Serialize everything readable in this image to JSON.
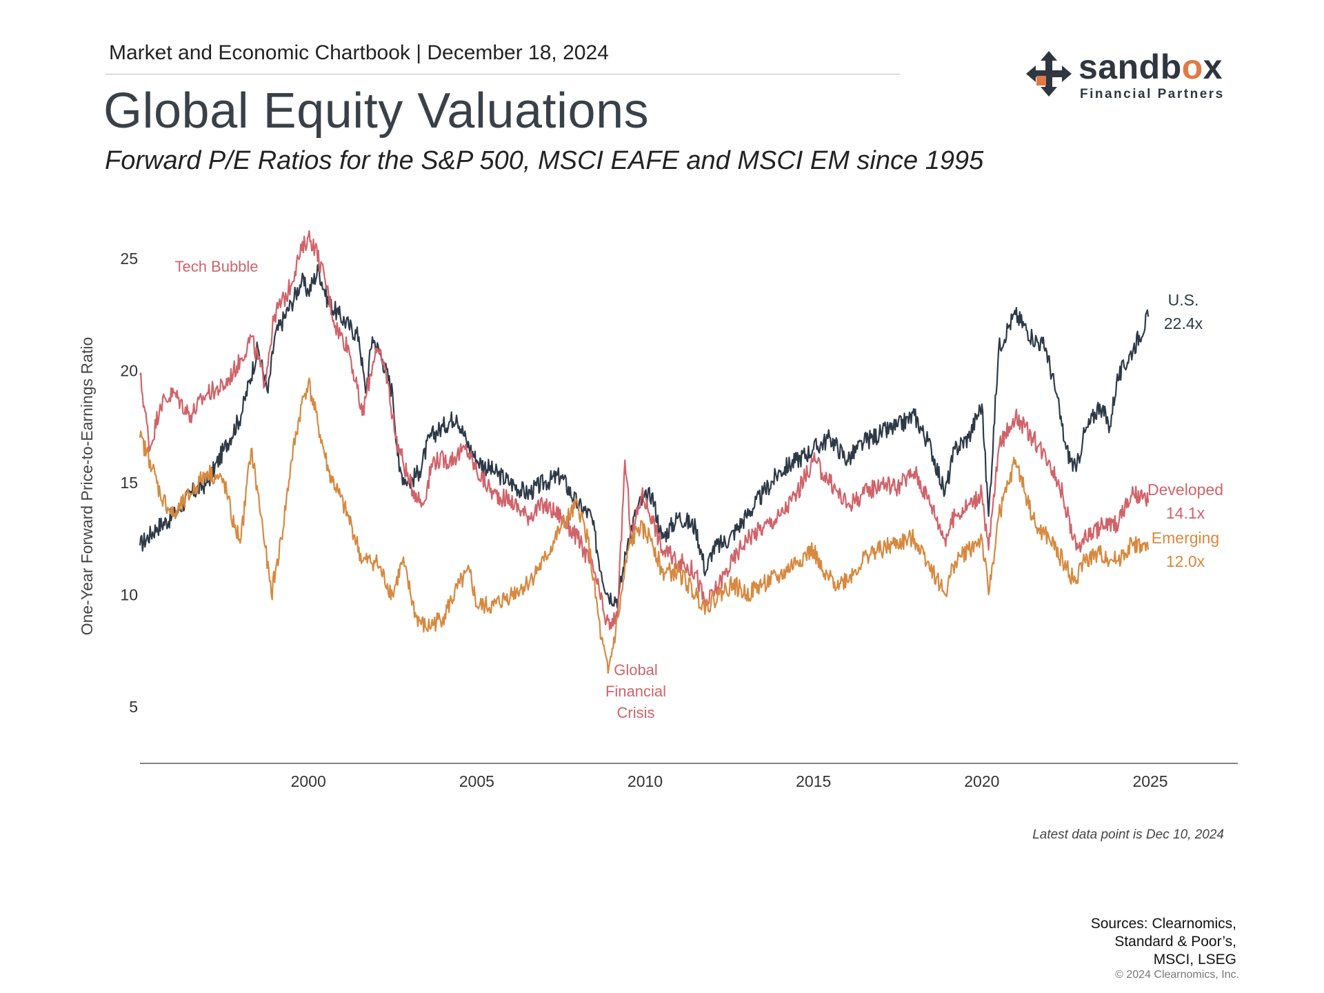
{
  "header": {
    "chartbook_label": "Market and Economic Chartbook | December 18, 2024",
    "title": "Global Equity Valuations",
    "subtitle": "Forward P/E Ratios for the S&P 500, MSCI EAFE and MSCI EM since 1995"
  },
  "logo": {
    "word_main": "sandb",
    "word_accent": "o",
    "word_end": "x",
    "tagline": "Financial Partners",
    "icon": "four-arrows-icon",
    "colors": {
      "dark": "#2f3640",
      "accent": "#e07b45"
    }
  },
  "chart_data": {
    "type": "line",
    "title": "",
    "xlabel": "",
    "ylabel": "One-Year Forward Price-to-Earnings Ratio",
    "xlim": [
      1995,
      2027.6
    ],
    "ylim": [
      3,
      26.5
    ],
    "x_ticks": [
      2000,
      2005,
      2010,
      2015,
      2020,
      2025
    ],
    "y_ticks": [
      5,
      10,
      15,
      20,
      25
    ],
    "grid": false,
    "series": [
      {
        "key": "us",
        "color": "#2e3a48",
        "end_label": [
          "U.S.",
          "22.4x"
        ],
        "points": [
          [
            1995.0,
            12.2
          ],
          [
            1995.5,
            13.0
          ],
          [
            1996.0,
            13.5
          ],
          [
            1996.5,
            14.5
          ],
          [
            1997.0,
            15.0
          ],
          [
            1997.5,
            16.5
          ],
          [
            1998.0,
            18.0
          ],
          [
            1998.5,
            21.0
          ],
          [
            1998.8,
            19.0
          ],
          [
            1999.0,
            21.5
          ],
          [
            1999.5,
            23.0
          ],
          [
            1999.8,
            24.0
          ],
          [
            2000.0,
            23.5
          ],
          [
            2000.3,
            24.5
          ],
          [
            2000.6,
            23.0
          ],
          [
            2000.9,
            22.5
          ],
          [
            2001.2,
            22.0
          ],
          [
            2001.5,
            21.5
          ],
          [
            2001.7,
            19.0
          ],
          [
            2001.9,
            21.5
          ],
          [
            2002.2,
            20.5
          ],
          [
            2002.5,
            19.0
          ],
          [
            2002.7,
            15.5
          ],
          [
            2003.0,
            15.0
          ],
          [
            2003.3,
            15.5
          ],
          [
            2003.6,
            17.0
          ],
          [
            2004.0,
            17.5
          ],
          [
            2004.4,
            18.0
          ],
          [
            2004.7,
            16.8
          ],
          [
            2005.0,
            16.0
          ],
          [
            2005.5,
            15.5
          ],
          [
            2006.0,
            15.0
          ],
          [
            2006.5,
            14.5
          ],
          [
            2007.0,
            15.0
          ],
          [
            2007.5,
            15.3
          ],
          [
            2008.0,
            14.0
          ],
          [
            2008.4,
            13.5
          ],
          [
            2008.7,
            11.0
          ],
          [
            2008.9,
            10.0
          ],
          [
            2009.2,
            9.8
          ],
          [
            2009.5,
            12.5
          ],
          [
            2009.8,
            14.0
          ],
          [
            2010.2,
            14.5
          ],
          [
            2010.5,
            12.5
          ],
          [
            2011.0,
            13.5
          ],
          [
            2011.5,
            13.0
          ],
          [
            2011.8,
            11.0
          ],
          [
            2012.0,
            12.0
          ],
          [
            2012.5,
            12.5
          ],
          [
            2013.0,
            13.5
          ],
          [
            2013.5,
            14.5
          ],
          [
            2014.0,
            15.5
          ],
          [
            2014.5,
            16.0
          ],
          [
            2015.0,
            16.5
          ],
          [
            2015.5,
            17.0
          ],
          [
            2016.0,
            16.0
          ],
          [
            2016.5,
            16.8
          ],
          [
            2017.0,
            17.2
          ],
          [
            2017.5,
            17.5
          ],
          [
            2018.0,
            18.0
          ],
          [
            2018.5,
            16.5
          ],
          [
            2018.9,
            14.5
          ],
          [
            2019.2,
            16.5
          ],
          [
            2019.6,
            17.0
          ],
          [
            2020.0,
            18.5
          ],
          [
            2020.2,
            13.5
          ],
          [
            2020.5,
            21.0
          ],
          [
            2020.8,
            22.0
          ],
          [
            2021.0,
            22.5
          ],
          [
            2021.5,
            21.5
          ],
          [
            2021.9,
            21.0
          ],
          [
            2022.2,
            19.0
          ],
          [
            2022.5,
            16.5
          ],
          [
            2022.8,
            15.5
          ],
          [
            2023.0,
            17.0
          ],
          [
            2023.5,
            18.5
          ],
          [
            2023.8,
            17.5
          ],
          [
            2024.0,
            19.5
          ],
          [
            2024.5,
            21.0
          ],
          [
            2024.94,
            22.4
          ]
        ]
      },
      {
        "key": "developed",
        "color": "#d0636a",
        "end_label": [
          "Developed",
          "14.1x"
        ],
        "points": [
          [
            1995.0,
            19.8
          ],
          [
            1995.3,
            16.5
          ],
          [
            1995.6,
            18.5
          ],
          [
            1996.0,
            19.0
          ],
          [
            1996.5,
            18.0
          ],
          [
            1997.0,
            19.0
          ],
          [
            1997.5,
            19.3
          ],
          [
            1998.0,
            20.5
          ],
          [
            1998.3,
            21.5
          ],
          [
            1998.7,
            19.5
          ],
          [
            1999.0,
            22.5
          ],
          [
            1999.4,
            23.5
          ],
          [
            1999.7,
            25.0
          ],
          [
            2000.0,
            26.0
          ],
          [
            2000.2,
            25.5
          ],
          [
            2000.5,
            24.0
          ],
          [
            2000.8,
            22.0
          ],
          [
            2001.2,
            21.0
          ],
          [
            2001.6,
            18.0
          ],
          [
            2002.0,
            21.0
          ],
          [
            2002.3,
            20.0
          ],
          [
            2002.6,
            17.0
          ],
          [
            2003.0,
            15.0
          ],
          [
            2003.4,
            14.0
          ],
          [
            2003.7,
            16.0
          ],
          [
            2004.2,
            16.0
          ],
          [
            2004.7,
            16.5
          ],
          [
            2005.0,
            15.5
          ],
          [
            2005.5,
            14.5
          ],
          [
            2006.0,
            14.2
          ],
          [
            2006.5,
            13.5
          ],
          [
            2007.0,
            14.0
          ],
          [
            2007.5,
            13.5
          ],
          [
            2008.0,
            12.5
          ],
          [
            2008.5,
            11.0
          ],
          [
            2008.8,
            9.0
          ],
          [
            2009.0,
            8.5
          ],
          [
            2009.2,
            9.5
          ],
          [
            2009.4,
            16.0
          ],
          [
            2009.6,
            12.5
          ],
          [
            2009.9,
            14.5
          ],
          [
            2010.2,
            13.5
          ],
          [
            2010.5,
            12.0
          ],
          [
            2011.0,
            11.5
          ],
          [
            2011.5,
            11.0
          ],
          [
            2011.8,
            9.5
          ],
          [
            2012.2,
            10.5
          ],
          [
            2012.6,
            11.5
          ],
          [
            2013.0,
            12.5
          ],
          [
            2013.5,
            13.0
          ],
          [
            2014.0,
            13.5
          ],
          [
            2014.5,
            14.5
          ],
          [
            2015.0,
            16.0
          ],
          [
            2015.5,
            15.0
          ],
          [
            2016.0,
            14.0
          ],
          [
            2016.5,
            14.5
          ],
          [
            2017.0,
            15.0
          ],
          [
            2017.5,
            14.8
          ],
          [
            2018.0,
            15.5
          ],
          [
            2018.5,
            14.0
          ],
          [
            2018.9,
            12.5
          ],
          [
            2019.2,
            13.5
          ],
          [
            2019.6,
            14.0
          ],
          [
            2020.0,
            14.5
          ],
          [
            2020.2,
            12.0
          ],
          [
            2020.5,
            16.5
          ],
          [
            2020.8,
            17.5
          ],
          [
            2021.0,
            18.0
          ],
          [
            2021.5,
            17.0
          ],
          [
            2022.0,
            16.0
          ],
          [
            2022.4,
            14.5
          ],
          [
            2022.8,
            12.0
          ],
          [
            2023.0,
            12.5
          ],
          [
            2023.5,
            13.0
          ],
          [
            2024.0,
            13.2
          ],
          [
            2024.5,
            14.5
          ],
          [
            2024.94,
            14.1
          ]
        ]
      },
      {
        "key": "emerging",
        "color": "#d6893f",
        "end_label": [
          "Emerging",
          "12.0x"
        ],
        "points": [
          [
            1995.0,
            17.0
          ],
          [
            1995.3,
            16.0
          ],
          [
            1995.6,
            14.5
          ],
          [
            1996.0,
            13.5
          ],
          [
            1996.5,
            14.5
          ],
          [
            1997.0,
            15.5
          ],
          [
            1997.5,
            15.0
          ],
          [
            1997.8,
            13.0
          ],
          [
            1998.0,
            12.5
          ],
          [
            1998.3,
            16.5
          ],
          [
            1998.6,
            13.5
          ],
          [
            1998.9,
            10.0
          ],
          [
            1999.2,
            12.5
          ],
          [
            1999.5,
            16.0
          ],
          [
            1999.8,
            18.5
          ],
          [
            2000.0,
            19.5
          ],
          [
            2000.3,
            17.5
          ],
          [
            2000.6,
            15.5
          ],
          [
            2000.9,
            14.5
          ],
          [
            2001.3,
            13.0
          ],
          [
            2001.6,
            11.5
          ],
          [
            2002.0,
            11.5
          ],
          [
            2002.5,
            10.0
          ],
          [
            2002.8,
            11.5
          ],
          [
            2003.2,
            9.0
          ],
          [
            2003.5,
            8.5
          ],
          [
            2004.0,
            9.0
          ],
          [
            2004.5,
            10.5
          ],
          [
            2004.8,
            11.0
          ],
          [
            2005.0,
            9.5
          ],
          [
            2005.5,
            9.5
          ],
          [
            2006.0,
            10.0
          ],
          [
            2006.5,
            10.5
          ],
          [
            2007.0,
            11.5
          ],
          [
            2007.5,
            13.0
          ],
          [
            2008.0,
            14.0
          ],
          [
            2008.3,
            12.5
          ],
          [
            2008.7,
            8.0
          ],
          [
            2008.9,
            6.5
          ],
          [
            2009.2,
            9.0
          ],
          [
            2009.5,
            12.0
          ],
          [
            2009.8,
            13.0
          ],
          [
            2010.2,
            12.5
          ],
          [
            2010.5,
            11.0
          ],
          [
            2011.0,
            11.0
          ],
          [
            2011.5,
            10.0
          ],
          [
            2011.8,
            9.5
          ],
          [
            2012.2,
            10.0
          ],
          [
            2012.6,
            10.5
          ],
          [
            2013.0,
            10.0
          ],
          [
            2013.5,
            10.5
          ],
          [
            2014.0,
            10.8
          ],
          [
            2014.5,
            11.5
          ],
          [
            2015.0,
            12.0
          ],
          [
            2015.3,
            10.8
          ],
          [
            2015.8,
            10.5
          ],
          [
            2016.2,
            11.0
          ],
          [
            2016.6,
            11.8
          ],
          [
            2017.0,
            12.0
          ],
          [
            2017.5,
            12.3
          ],
          [
            2018.0,
            12.5
          ],
          [
            2018.4,
            11.5
          ],
          [
            2018.9,
            10.0
          ],
          [
            2019.2,
            11.5
          ],
          [
            2019.6,
            12.0
          ],
          [
            2020.0,
            12.5
          ],
          [
            2020.2,
            10.0
          ],
          [
            2020.5,
            13.5
          ],
          [
            2020.8,
            15.0
          ],
          [
            2021.0,
            16.0
          ],
          [
            2021.3,
            14.5
          ],
          [
            2021.6,
            13.0
          ],
          [
            2022.0,
            12.5
          ],
          [
            2022.4,
            11.5
          ],
          [
            2022.8,
            10.5
          ],
          [
            2023.0,
            11.5
          ],
          [
            2023.5,
            11.8
          ],
          [
            2024.0,
            11.5
          ],
          [
            2024.5,
            12.3
          ],
          [
            2024.94,
            12.0
          ]
        ]
      }
    ],
    "annotations": [
      {
        "key": "tech_bubble",
        "lines": [
          "Tech Bubble"
        ],
        "color": "#d0636a",
        "x": 1997.3,
        "y": 25.0
      },
      {
        "key": "gfc",
        "lines": [
          "Global",
          "Financial",
          "Crisis"
        ],
        "color": "#d0636a",
        "x": 2008.8,
        "y": 6.0
      }
    ]
  },
  "footer": {
    "latest_note": "Latest data point is Dec 10, 2024",
    "sources_lines": [
      "Sources: Clearnomics,",
      "Standard & Poor’s,",
      "MSCI, LSEG"
    ],
    "copyright": "© 2024 Clearnomics, Inc."
  }
}
